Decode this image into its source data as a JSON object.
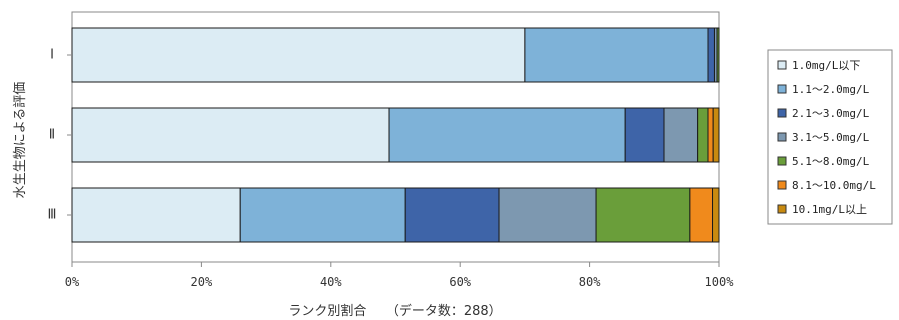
{
  "chart_data": {
    "type": "bar",
    "orientation": "horizontal",
    "stacked": true,
    "percent": true,
    "categories": [
      "Ⅰ",
      "Ⅱ",
      "Ⅲ"
    ],
    "series": [
      {
        "name": "1.0mg/L以下",
        "color": "#dcecf4",
        "values": [
          70,
          49,
          26
        ]
      },
      {
        "name": "1.1～2.0mg/L",
        "color": "#7eb2d8",
        "values": [
          28.3,
          36.5,
          25.5
        ]
      },
      {
        "name": "2.1～3.0mg/L",
        "color": "#3e64a8",
        "values": [
          1.0,
          6.0,
          14.5
        ]
      },
      {
        "name": "3.1～5.0mg/L",
        "color": "#7d98b0",
        "values": [
          0.4,
          5.2,
          15.0
        ]
      },
      {
        "name": "5.1～8.0mg/L",
        "color": "#6a9e3a",
        "values": [
          0.3,
          1.6,
          14.5
        ]
      },
      {
        "name": "8.1～10.0mg/L",
        "color": "#f08a1c",
        "values": [
          0,
          0.8,
          3.5
        ]
      },
      {
        "name": "10.1mg/L以上",
        "color": "#c88a10",
        "values": [
          0,
          0.9,
          1.0
        ]
      }
    ],
    "xlim": [
      0,
      100
    ],
    "xticks": [
      "0%",
      "20%",
      "40%",
      "60%",
      "80%",
      "100%"
    ],
    "xlabel": "ランク別割合　　（データ数：288）",
    "ylabel": "水生生物による評価",
    "legend_position": "right",
    "grid": false
  }
}
